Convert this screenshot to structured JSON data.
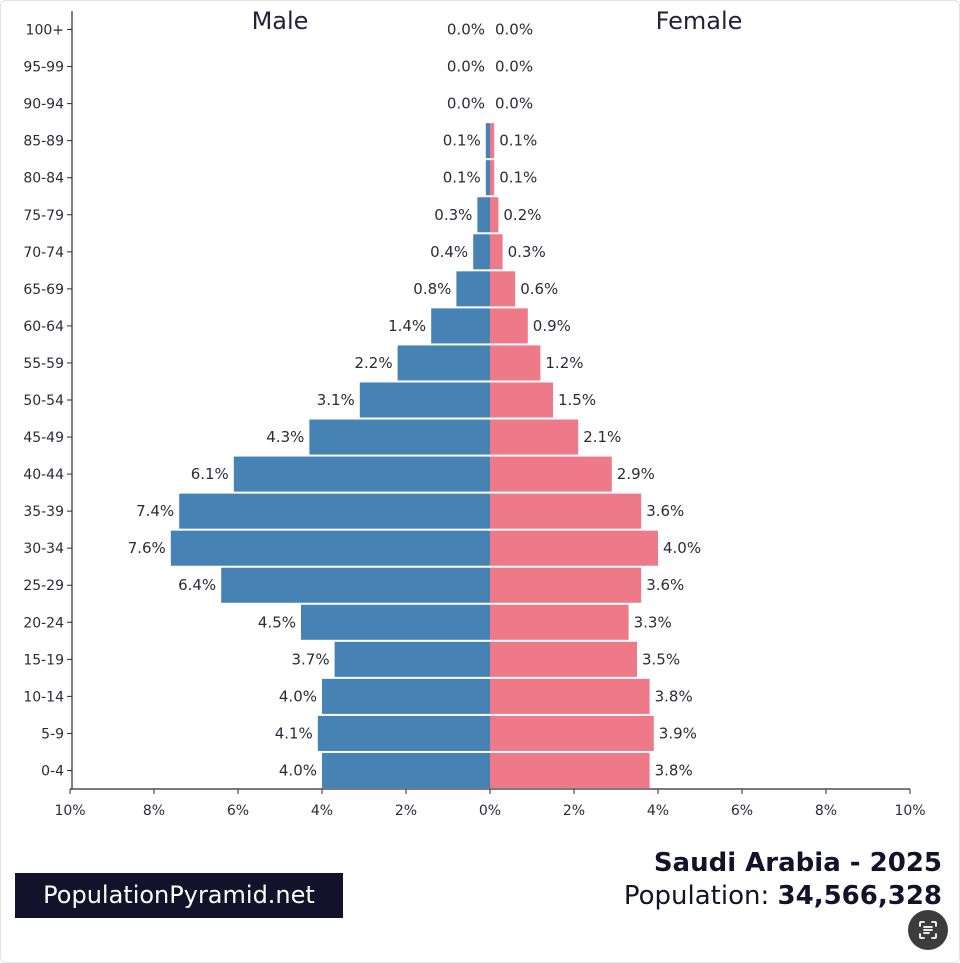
{
  "chart_data": {
    "type": "bar",
    "subtype": "population-pyramid",
    "categories": [
      "100+",
      "95-99",
      "90-94",
      "85-89",
      "80-84",
      "75-79",
      "70-74",
      "65-69",
      "60-64",
      "55-59",
      "50-54",
      "45-49",
      "40-44",
      "35-39",
      "30-34",
      "25-29",
      "20-24",
      "15-19",
      "10-14",
      "5-9",
      "0-4"
    ],
    "series": [
      {
        "name": "Male",
        "color": "#4682b4",
        "values": [
          0.0,
          0.0,
          0.0,
          0.1,
          0.1,
          0.3,
          0.4,
          0.8,
          1.4,
          2.2,
          3.1,
          4.3,
          6.1,
          7.4,
          7.6,
          6.4,
          4.5,
          3.7,
          4.0,
          4.1,
          4.0
        ],
        "labels": [
          "0.0%",
          "0.0%",
          "0.0%",
          "0.1%",
          "0.1%",
          "0.3%",
          "0.4%",
          "0.8%",
          "1.4%",
          "2.2%",
          "3.1%",
          "4.3%",
          "6.1%",
          "7.4%",
          "7.6%",
          "6.4%",
          "4.5%",
          "3.7%",
          "4.0%",
          "4.1%",
          "4.0%"
        ]
      },
      {
        "name": "Female",
        "color": "#ee7989",
        "values": [
          0.0,
          0.0,
          0.0,
          0.1,
          0.1,
          0.2,
          0.3,
          0.6,
          0.9,
          1.2,
          1.5,
          2.1,
          2.9,
          3.6,
          4.0,
          3.6,
          3.3,
          3.5,
          3.8,
          3.9,
          3.8
        ],
        "labels": [
          "0.0%",
          "0.0%",
          "0.0%",
          "0.1%",
          "0.1%",
          "0.2%",
          "0.3%",
          "0.6%",
          "0.9%",
          "1.2%",
          "1.5%",
          "2.1%",
          "2.9%",
          "3.6%",
          "4.0%",
          "3.6%",
          "3.3%",
          "3.5%",
          "3.8%",
          "3.9%",
          "3.8%"
        ]
      }
    ],
    "xlim": [
      -10,
      10
    ],
    "xticks": [
      "10%",
      "8%",
      "6%",
      "4%",
      "2%",
      "0%",
      "2%",
      "4%",
      "6%",
      "8%",
      "10%"
    ],
    "grid": false,
    "title": "Saudi Arabia - 2025"
  },
  "footer": {
    "brand": "PopulationPyramid.net",
    "country_year": "Saudi Arabia - 2025",
    "population_label": "Population:",
    "population_value": "34,566,328"
  }
}
